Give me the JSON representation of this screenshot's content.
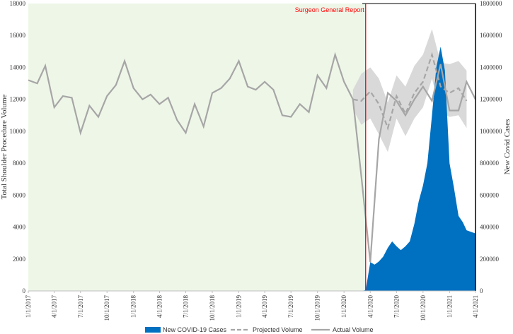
{
  "chart_data": {
    "type": "line",
    "title": "",
    "ylabel": "Total Shoulder Procedure Volume",
    "y2label": "New Covid Cases",
    "ylim": [
      0,
      18000
    ],
    "y2lim": [
      0,
      1800000
    ],
    "yticks": [
      "0",
      "2000",
      "4000",
      "6000",
      "8000",
      "10000",
      "12000",
      "14000",
      "16000",
      "18000"
    ],
    "y2ticks": [
      "0",
      "200000",
      "400000",
      "600000",
      "800000",
      "1000000",
      "1200000",
      "1400000",
      "1600000",
      "1800000"
    ],
    "xlim": [
      "2017-01-01",
      "2021-04-01"
    ],
    "xticks": [
      "1/1/2017",
      "4/1/2017",
      "7/1/2017",
      "10/1/2017",
      "1/1/2018",
      "4/1/2018",
      "7/1/2018",
      "10/1/2018",
      "1/1/2019",
      "4/1/2019",
      "7/1/2019",
      "10/1/2019",
      "1/1/2020",
      "4/1/2020",
      "7/1/2020",
      "10/1/2020",
      "1/1/2021",
      "4/1/2021"
    ],
    "grid": false,
    "legend_position": "bottom",
    "annotation": {
      "label": "Surgeon General Report",
      "x": "2020-03-16",
      "color": "#ff0000",
      "shaded_region_before": "#eef6e8"
    },
    "series": [
      {
        "name": "Actual Volume",
        "axis": "left",
        "color": "#a6a6a6",
        "points": [
          [
            "2017-01-01",
            13200
          ],
          [
            "2017-02-01",
            13000
          ],
          [
            "2017-03-01",
            14100
          ],
          [
            "2017-04-01",
            11500
          ],
          [
            "2017-05-01",
            12200
          ],
          [
            "2017-06-01",
            12100
          ],
          [
            "2017-07-01",
            9900
          ],
          [
            "2017-08-01",
            11600
          ],
          [
            "2017-09-01",
            10900
          ],
          [
            "2017-10-01",
            12200
          ],
          [
            "2017-11-01",
            12900
          ],
          [
            "2017-12-01",
            14400
          ],
          [
            "2018-01-01",
            12700
          ],
          [
            "2018-02-01",
            12000
          ],
          [
            "2018-03-01",
            12300
          ],
          [
            "2018-04-01",
            11700
          ],
          [
            "2018-05-01",
            12100
          ],
          [
            "2018-06-01",
            10700
          ],
          [
            "2018-07-01",
            9900
          ],
          [
            "2018-08-01",
            11700
          ],
          [
            "2018-09-01",
            10300
          ],
          [
            "2018-10-01",
            12400
          ],
          [
            "2018-11-01",
            12700
          ],
          [
            "2018-12-01",
            13300
          ],
          [
            "2019-01-01",
            14400
          ],
          [
            "2019-02-01",
            12800
          ],
          [
            "2019-03-01",
            12600
          ],
          [
            "2019-04-01",
            13100
          ],
          [
            "2019-05-01",
            12600
          ],
          [
            "2019-06-01",
            11000
          ],
          [
            "2019-07-01",
            10900
          ],
          [
            "2019-08-01",
            11700
          ],
          [
            "2019-09-01",
            11200
          ],
          [
            "2019-10-01",
            13500
          ],
          [
            "2019-11-01",
            12700
          ],
          [
            "2019-12-01",
            14800
          ],
          [
            "2020-01-01",
            13100
          ],
          [
            "2020-02-01",
            12000
          ],
          [
            "2020-03-01",
            7200
          ],
          [
            "2020-04-01",
            1800
          ],
          [
            "2020-05-01",
            9500
          ],
          [
            "2020-06-01",
            12400
          ],
          [
            "2020-07-01",
            11900
          ],
          [
            "2020-08-01",
            11000
          ],
          [
            "2020-09-01",
            12000
          ],
          [
            "2020-10-01",
            12800
          ],
          [
            "2020-11-01",
            11900
          ],
          [
            "2020-12-01",
            14200
          ],
          [
            "2021-01-01",
            11300
          ],
          [
            "2021-02-01",
            11300
          ],
          [
            "2021-03-01",
            13100
          ],
          [
            "2021-04-01",
            12000
          ]
        ]
      },
      {
        "name": "Projected Volume",
        "axis": "left",
        "color": "#a6a6a6",
        "dashed": true,
        "points": [
          [
            "2020-02-01",
            12000
          ],
          [
            "2020-03-01",
            11900
          ],
          [
            "2020-04-01",
            12500
          ],
          [
            "2020-05-01",
            11700
          ],
          [
            "2020-06-01",
            10200
          ],
          [
            "2020-07-01",
            12200
          ],
          [
            "2020-08-01",
            11100
          ],
          [
            "2020-09-01",
            12400
          ],
          [
            "2020-10-01",
            13100
          ],
          [
            "2020-11-01",
            14800
          ],
          [
            "2020-12-01",
            12800
          ],
          [
            "2021-01-01",
            12400
          ],
          [
            "2021-02-01",
            12700
          ],
          [
            "2021-03-01",
            11900
          ]
        ],
        "band_upper": [
          12600,
          13600,
          14000,
          13300,
          11800,
          13500,
          12800,
          14100,
          14800,
          16400,
          14300,
          14200,
          14400,
          13800
        ],
        "band_lower": [
          11400,
          10400,
          10800,
          9800,
          8700,
          10800,
          9700,
          10800,
          11500,
          13300,
          11200,
          10900,
          11000,
          10200
        ]
      },
      {
        "name": "New COVID-19 Cases",
        "axis": "right",
        "color": "#0070c0",
        "type": "area",
        "points": [
          [
            "2020-03-01",
            0
          ],
          [
            "2020-03-16",
            5000
          ],
          [
            "2020-04-01",
            180000
          ],
          [
            "2020-04-16",
            165000
          ],
          [
            "2020-05-01",
            185000
          ],
          [
            "2020-05-16",
            215000
          ],
          [
            "2020-06-01",
            270000
          ],
          [
            "2020-06-16",
            310000
          ],
          [
            "2020-07-01",
            280000
          ],
          [
            "2020-07-16",
            255000
          ],
          [
            "2020-08-01",
            280000
          ],
          [
            "2020-08-16",
            310000
          ],
          [
            "2020-09-01",
            420000
          ],
          [
            "2020-09-16",
            560000
          ],
          [
            "2020-10-01",
            660000
          ],
          [
            "2020-10-16",
            800000
          ],
          [
            "2020-11-01",
            1100000
          ],
          [
            "2020-11-16",
            1400000
          ],
          [
            "2020-12-01",
            1530000
          ],
          [
            "2020-12-16",
            1380000
          ],
          [
            "2021-01-01",
            800000
          ],
          [
            "2021-01-16",
            650000
          ],
          [
            "2021-02-01",
            470000
          ],
          [
            "2021-02-16",
            430000
          ],
          [
            "2021-03-01",
            380000
          ],
          [
            "2021-04-01",
            360000
          ]
        ]
      }
    ],
    "legend": [
      "New COVID-19 Cases",
      "Projected Volume",
      "Actual Volume"
    ]
  }
}
